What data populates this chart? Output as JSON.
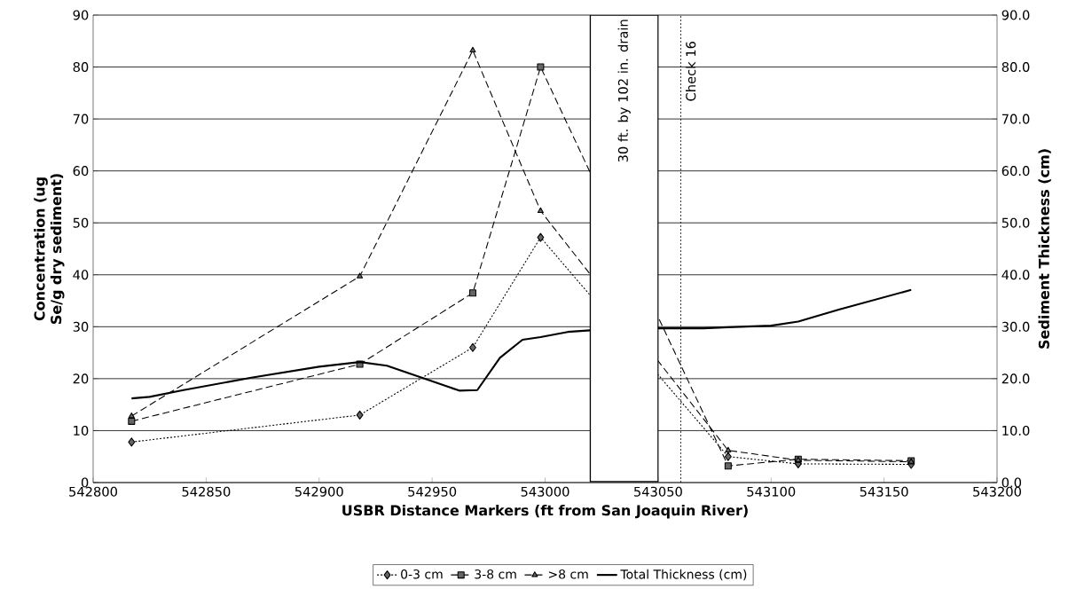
{
  "chart_data": {
    "type": "line",
    "xlabel": "USBR Distance Markers (ft from San Joaquin River)",
    "ylabel": "Concentration (ug Se/g dry sediment)",
    "y2label": "Sediment Thickness (cm)",
    "xlim": [
      542800,
      543200
    ],
    "xticks": [
      542800,
      542850,
      542900,
      542950,
      543000,
      543050,
      543100,
      543150,
      543200
    ],
    "ylim": [
      0,
      90
    ],
    "yticks": [
      0,
      10,
      20,
      30,
      40,
      50,
      60,
      70,
      80,
      90
    ],
    "y2lim": [
      0,
      90
    ],
    "y2ticks": [
      {
        "value": 0,
        "label": "0.0"
      },
      {
        "value": 10,
        "label": "10.0"
      },
      {
        "value": 20,
        "label": "20.0"
      },
      {
        "value": 30,
        "label": "30.0"
      },
      {
        "value": 40,
        "label": "40.0"
      },
      {
        "value": 50,
        "label": "50.0"
      },
      {
        "value": 60,
        "label": "60.0"
      },
      {
        "value": 70,
        "label": "70.0"
      },
      {
        "value": 80,
        "label": "80.0"
      },
      {
        "value": 90,
        "label": "90.0"
      }
    ],
    "grid": "y",
    "legend": "bottom",
    "series": [
      {
        "name": "0-3 cm",
        "color": "#000000",
        "marker": "diamond",
        "line_style": "dotted",
        "x": [
          542817,
          542918,
          542968,
          542998,
          543081,
          543112,
          543162
        ],
        "values": [
          7.8,
          13,
          26,
          47.2,
          5,
          3.6,
          3.5
        ]
      },
      {
        "name": "3-8 cm",
        "color": "#000000",
        "marker": "square",
        "line_style": "dashed",
        "x": [
          542817,
          542918,
          542968,
          542998,
          543081,
          543112,
          543162
        ],
        "values": [
          11.8,
          22.8,
          36.5,
          80,
          3.2,
          4.5,
          4.2
        ]
      },
      {
        "name": ">8 cm",
        "color": "#000000",
        "marker": "triangle",
        "line_style": "dashed",
        "x": [
          542817,
          542918,
          542968,
          542998,
          543081,
          543112,
          543162
        ],
        "values": [
          12.8,
          39.7,
          83.2,
          52.3,
          6.2,
          4.3,
          4.0
        ]
      },
      {
        "name": "Total Thickness (cm)",
        "color": "#000000",
        "marker": "none",
        "line_style": "solid",
        "axis": "y2",
        "x": [
          542817,
          542825,
          542840,
          542870,
          542900,
          542918,
          542930,
          542950,
          542962,
          542970,
          542980,
          542990,
          542998,
          543010,
          543020,
          543050,
          543070,
          543081,
          543100,
          543112,
          543130,
          543162
        ],
        "values": [
          16.2,
          16.5,
          17.8,
          20.2,
          22.3,
          23.2,
          22.5,
          19.5,
          17.7,
          17.8,
          24,
          27.5,
          28,
          29,
          29.3,
          29.7,
          29.7,
          29.9,
          30.2,
          31,
          33.3,
          37.1
        ]
      }
    ],
    "bands": [
      {
        "axis": "x",
        "from": 543020,
        "to": 543050,
        "label": "30 ft. by 102 in. drain",
        "color": "#ffffff"
      }
    ],
    "ref_lines": [
      {
        "axis": "x",
        "value": 543060,
        "label": "Check 16",
        "line_style": "dotted"
      }
    ]
  }
}
